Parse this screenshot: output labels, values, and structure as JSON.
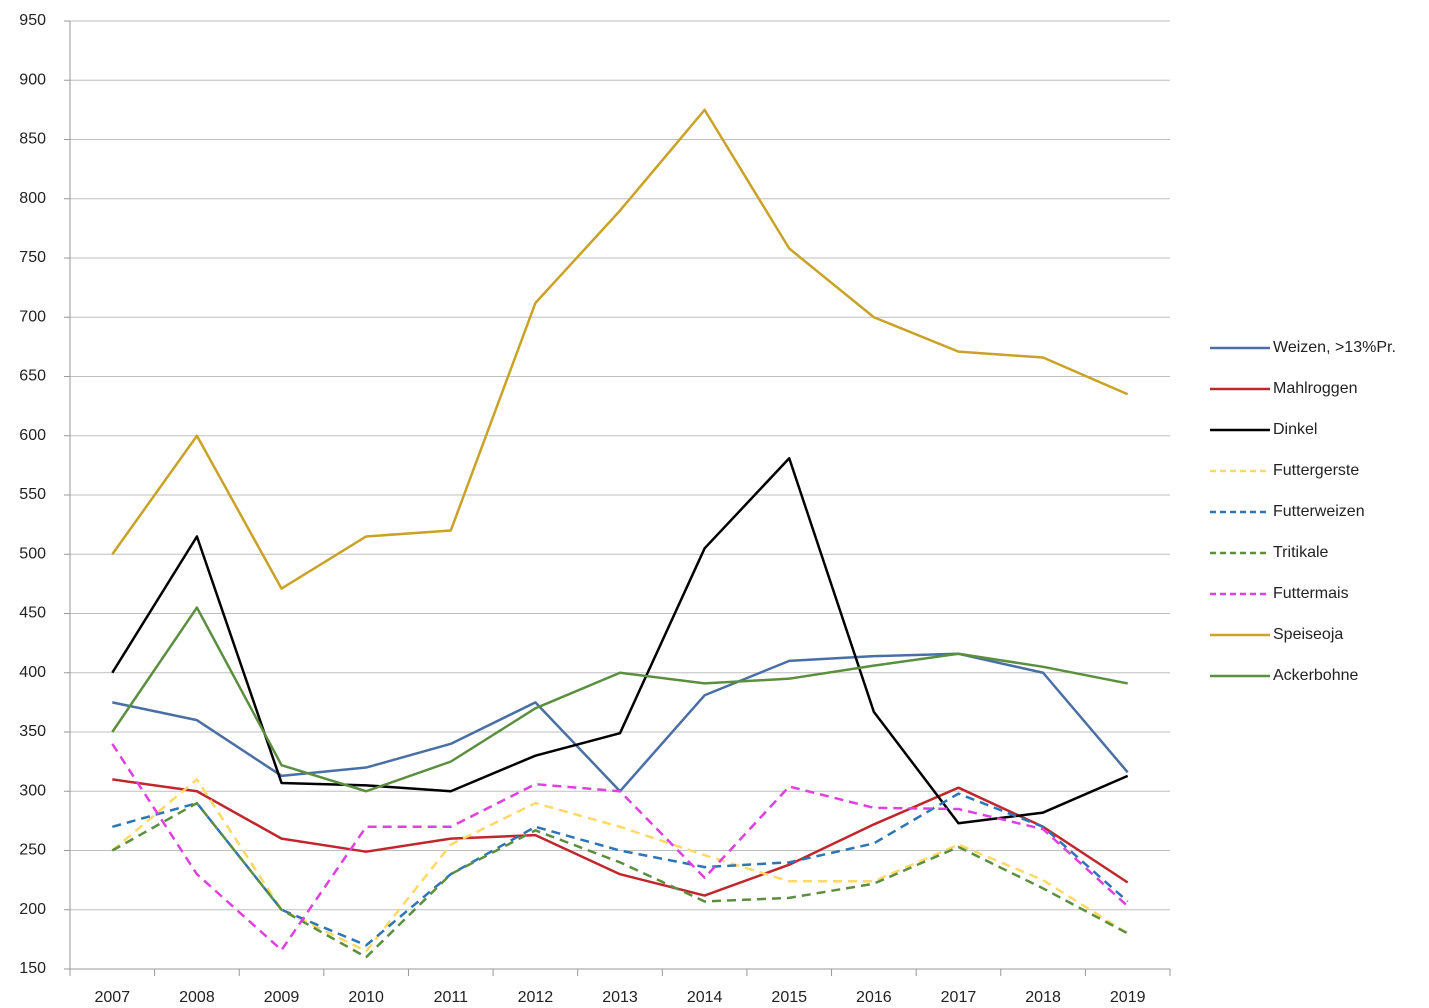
{
  "chart_data": {
    "type": "line",
    "categories": [
      "2007",
      "2008",
      "2009",
      "2010",
      "2011",
      "2012",
      "2013",
      "2014",
      "2015",
      "2016",
      "2017",
      "2018",
      "2019"
    ],
    "series": [
      {
        "name": "Weizen, >13%Pr.",
        "color": "#4a6fa5",
        "dash": false,
        "values": [
          375,
          360,
          313,
          320,
          340,
          375,
          300,
          381,
          410,
          414,
          416,
          400,
          316
        ]
      },
      {
        "name": "Mahlroggen",
        "color": "#c0272d",
        "dash": false,
        "values": [
          310,
          300,
          260,
          249,
          260,
          263,
          230,
          212,
          238,
          272,
          303,
          270,
          223
        ]
      },
      {
        "name": "Dinkel",
        "color": "#000000",
        "dash": false,
        "values": [
          400,
          515,
          307,
          305,
          300,
          330,
          349,
          505,
          581,
          367,
          273,
          282,
          313
        ]
      },
      {
        "name": "Futtergerste",
        "color": "#ffd966",
        "dash": true,
        "values": [
          250,
          310,
          200,
          165,
          255,
          290,
          270,
          246,
          224,
          224,
          255,
          225,
          180
        ]
      },
      {
        "name": "Futterweizen",
        "color": "#2e75b6",
        "dash": true,
        "values": [
          270,
          290,
          200,
          170,
          230,
          270,
          250,
          236,
          240,
          256,
          298,
          270,
          207
        ]
      },
      {
        "name": "Tritikale",
        "color": "#5b8f3f",
        "dash": true,
        "values": [
          250,
          290,
          200,
          160,
          230,
          267,
          240,
          207,
          210,
          222,
          253,
          218,
          180
        ]
      },
      {
        "name": "Futtermais",
        "color": "#e040e0",
        "dash": true,
        "values": [
          340,
          230,
          166,
          270,
          270,
          306,
          300,
          227,
          304,
          286,
          285,
          268,
          203
        ]
      },
      {
        "name": "Speiseoja",
        "color": "#c9a227",
        "dash": false,
        "values": [
          500,
          600,
          471,
          515,
          520,
          712,
          790,
          875,
          758,
          700,
          671,
          666,
          635
        ]
      },
      {
        "name": "Ackerbohne",
        "color": "#5b8f3f",
        "dash": false,
        "values": [
          350,
          455,
          322,
          300,
          325,
          370,
          400,
          391,
          395,
          406,
          416,
          405,
          391
        ]
      }
    ],
    "ylim": [
      150,
      950
    ],
    "yticks": [
      150,
      200,
      250,
      300,
      350,
      400,
      450,
      500,
      550,
      600,
      650,
      700,
      750,
      800,
      850,
      900,
      950
    ],
    "grid": true,
    "legend": "right"
  }
}
